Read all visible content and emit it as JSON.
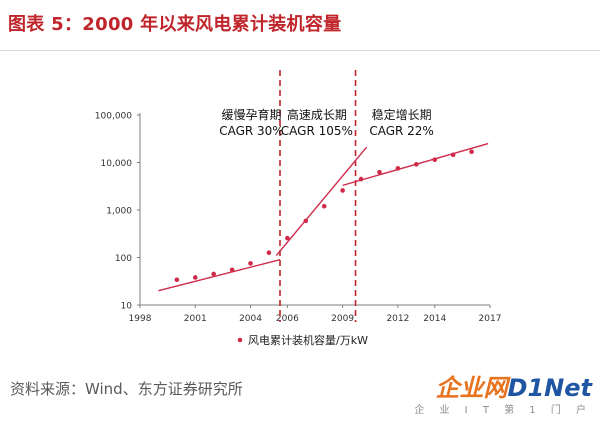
{
  "title": "图表 5：2000 年以来风电累计装机容量",
  "source": "资料来源：Wind、东方证券研究所",
  "watermark": {
    "brand": "企业网",
    "brand_net": "D1Net",
    "tagline": "企 业 I T 第 1 门 户"
  },
  "colors": {
    "accent": "#c0252b",
    "series": "#cf2a4a",
    "divider": "#c0252b"
  },
  "chart_data": {
    "type": "scatter",
    "y_scale": "log",
    "xlim": [
      1998,
      2017
    ],
    "ylim": [
      10,
      100000
    ],
    "x_ticks": [
      "1998",
      "2001",
      "2004",
      "2006",
      "2009",
      "2012",
      "2014",
      "2017"
    ],
    "y_ticks": [
      "100,000",
      "10,000",
      "1,000",
      "100",
      "10"
    ],
    "x_tick_values": [
      1998,
      2001,
      2004,
      2006,
      2009,
      2012,
      2014,
      2017
    ],
    "y_tick_values": [
      100000,
      10000,
      1000,
      100,
      10
    ],
    "series": [
      {
        "name": "风电累计装机容量/万kW",
        "x": [
          2000,
          2001,
          2002,
          2003,
          2004,
          2005,
          2006,
          2007,
          2008,
          2009,
          2010,
          2011,
          2012,
          2013,
          2014,
          2015,
          2016
        ],
        "y": [
          34,
          38,
          45,
          55,
          75,
          126,
          256,
          590,
          1200,
          2580,
          4470,
          6240,
          7530,
          9140,
          11460,
          14510,
          16870
        ]
      }
    ],
    "trendlines": [
      {
        "x": [
          1999,
          2005.6
        ],
        "y": [
          20,
          90
        ]
      },
      {
        "x": [
          2005.4,
          2010.3
        ],
        "y": [
          110,
          21000
        ]
      },
      {
        "x": [
          2009,
          2016.9
        ],
        "y": [
          3300,
          25000
        ]
      }
    ],
    "dividers": [
      2005.6,
      2009.7
    ],
    "phases": [
      {
        "name": "缓慢孕育期",
        "cagr": "CAGR 30%"
      },
      {
        "name": "高速成长期",
        "cagr": "CAGR 105%"
      },
      {
        "name": "稳定增长期",
        "cagr": "CAGR 22%"
      }
    ],
    "grid": false,
    "legend": "bottom"
  }
}
